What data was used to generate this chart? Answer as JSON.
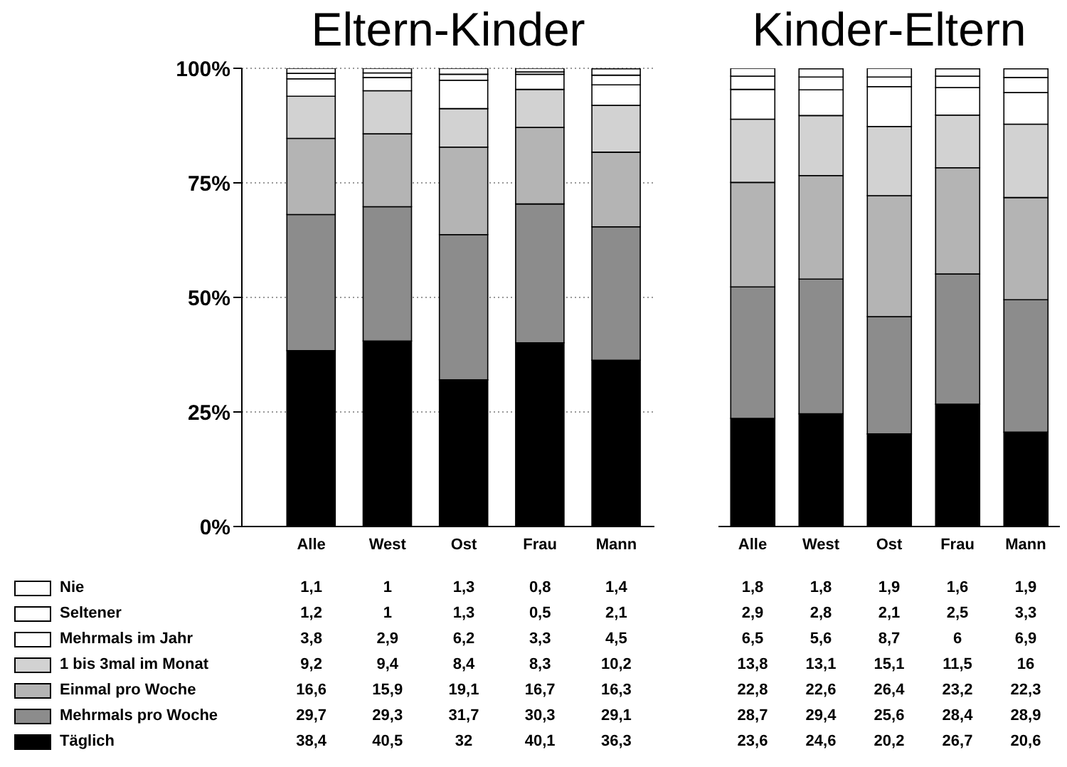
{
  "chart_data": [
    {
      "type": "bar",
      "title": "Eltern-Kinder",
      "categories": [
        "Alle",
        "West",
        "Ost",
        "Frau",
        "Mann"
      ],
      "stacked": true,
      "ylim": [
        0,
        100
      ],
      "yticks": [
        {
          "value": 0,
          "label": "0%"
        },
        {
          "value": 25,
          "label": "25%"
        },
        {
          "value": 50,
          "label": "50%"
        },
        {
          "value": 75,
          "label": "75%"
        },
        {
          "value": 100,
          "label": "100%"
        }
      ],
      "grid": "y",
      "legend": "bottom left",
      "series": [
        {
          "name": "Täglich",
          "color": "#000000",
          "values": [
            38.4,
            40.5,
            32,
            40.1,
            36.3
          ],
          "value_labels": [
            "38,4",
            "40,5",
            "32",
            "40,1",
            "36,3"
          ]
        },
        {
          "name": "Mehrmals pro Woche",
          "color": "#8c8c8c",
          "values": [
            29.7,
            29.3,
            31.7,
            30.3,
            29.1
          ],
          "value_labels": [
            "29,7",
            "29,3",
            "31,7",
            "30,3",
            "29,1"
          ]
        },
        {
          "name": "Einmal pro Woche",
          "color": "#b4b4b4",
          "values": [
            16.6,
            15.9,
            19.1,
            16.7,
            16.3
          ],
          "value_labels": [
            "16,6",
            "15,9",
            "19,1",
            "16,7",
            "16,3"
          ]
        },
        {
          "name": "1 bis 3mal im Monat",
          "color": "#d2d2d2",
          "values": [
            9.2,
            9.4,
            8.4,
            8.3,
            10.2
          ],
          "value_labels": [
            "9,2",
            "9,4",
            "8,4",
            "8,3",
            "10,2"
          ]
        },
        {
          "name": "Mehrmals im Jahr",
          "color": "#ffffff",
          "values": [
            3.8,
            2.9,
            6.2,
            3.3,
            4.5
          ],
          "value_labels": [
            "3,8",
            "2,9",
            "6,2",
            "3,3",
            "4,5"
          ]
        },
        {
          "name": "Seltener",
          "color": "#ffffff",
          "values": [
            1.2,
            1,
            1.3,
            0.5,
            2.1
          ],
          "value_labels": [
            "1,2",
            "1",
            "1,3",
            "0,5",
            "2,1"
          ]
        },
        {
          "name": "Nie",
          "color": "#ffffff",
          "values": [
            1.1,
            1,
            1.3,
            0.8,
            1.4
          ],
          "value_labels": [
            "1,1",
            "1",
            "1,3",
            "0,8",
            "1,4"
          ]
        }
      ]
    },
    {
      "type": "bar",
      "title": "Kinder-Eltern",
      "categories": [
        "Alle",
        "West",
        "Ost",
        "Frau",
        "Mann"
      ],
      "stacked": true,
      "ylim": [
        0,
        100
      ],
      "tick_labels": "x",
      "series": [
        {
          "color": "#000000",
          "values": [
            23.6,
            24.6,
            20.2,
            26.7,
            20.6
          ],
          "value_labels": [
            "23,6",
            "24,6",
            "20,2",
            "26,7",
            "20,6"
          ]
        },
        {
          "color": "#8c8c8c",
          "values": [
            28.7,
            29.4,
            25.6,
            28.4,
            28.9
          ],
          "value_labels": [
            "28,7",
            "29,4",
            "25,6",
            "28,4",
            "28,9"
          ]
        },
        {
          "color": "#b4b4b4",
          "values": [
            22.8,
            22.6,
            26.4,
            23.2,
            22.3
          ],
          "value_labels": [
            "22,8",
            "22,6",
            "26,4",
            "23,2",
            "22,3"
          ]
        },
        {
          "color": "#d2d2d2",
          "values": [
            13.8,
            13.1,
            15.1,
            11.5,
            16
          ],
          "value_labels": [
            "13,8",
            "13,1",
            "15,1",
            "11,5",
            "16"
          ]
        },
        {
          "color": "#ffffff",
          "values": [
            6.5,
            5.6,
            8.7,
            6,
            6.9
          ],
          "value_labels": [
            "6,5",
            "5,6",
            "8,7",
            "6",
            "6,9"
          ]
        },
        {
          "color": "#ffffff",
          "values": [
            2.9,
            2.8,
            2.1,
            2.5,
            3.3
          ],
          "value_labels": [
            "2,9",
            "2,8",
            "2,1",
            "2,5",
            "3,3"
          ]
        },
        {
          "color": "#ffffff",
          "values": [
            1.8,
            1.8,
            1.9,
            1.6,
            1.9
          ],
          "value_labels": [
            "1,8",
            "1,8",
            "1,9",
            "1,6",
            "1,9"
          ]
        }
      ]
    }
  ]
}
